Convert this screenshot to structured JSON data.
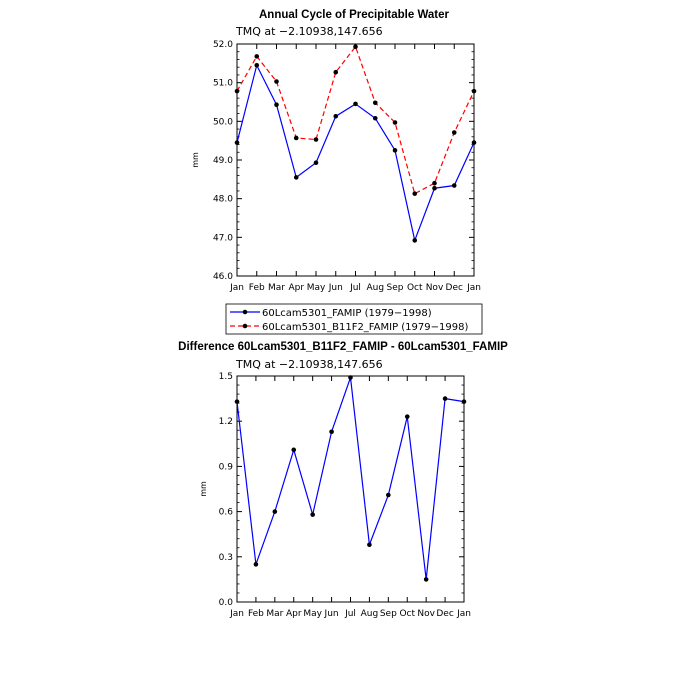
{
  "chart_data": [
    {
      "type": "line",
      "title": "Annual Cycle of Precipitable Water",
      "subtitle": "TMQ  at  −2.10938,147.656",
      "xlabel": "",
      "ylabel": "mm",
      "categories": [
        "Jan",
        "Feb",
        "Mar",
        "Apr",
        "May",
        "Jun",
        "Jul",
        "Aug",
        "Sep",
        "Oct",
        "Nov",
        "Dec",
        "Jan"
      ],
      "ylim": [
        46.0,
        52.0
      ],
      "yticks": [
        "46.0",
        "47.0",
        "48.0",
        "49.0",
        "50.0",
        "51.0",
        "52.0"
      ],
      "legend_position": "bottom",
      "series": [
        {
          "name": "60Lcam5301_FAMIP (1979−1998)",
          "color": "#0000ff",
          "dash": "solid",
          "values": [
            49.45,
            51.45,
            50.43,
            48.55,
            48.93,
            50.13,
            50.45,
            50.08,
            49.25,
            46.92,
            48.27,
            48.34,
            49.45
          ]
        },
        {
          "name": "60Lcam5301_B11F2_FAMIP (1979−1998)",
          "color": "#ff0000",
          "dash": "dashed",
          "values": [
            50.78,
            51.68,
            51.03,
            49.57,
            49.53,
            51.27,
            51.93,
            50.48,
            49.97,
            48.13,
            48.4,
            49.71,
            50.78
          ]
        }
      ]
    },
    {
      "type": "line",
      "title": "Difference 60Lcam5301_B11F2_FAMIP - 60Lcam5301_FAMIP",
      "subtitle": "TMQ  at  −2.10938,147.656",
      "xlabel": "",
      "ylabel": "mm",
      "categories": [
        "Jan",
        "Feb",
        "Mar",
        "Apr",
        "May",
        "Jun",
        "Jul",
        "Aug",
        "Sep",
        "Oct",
        "Nov",
        "Dec",
        "Jan"
      ],
      "ylim": [
        0.0,
        1.5
      ],
      "yticks": [
        "0.0",
        "0.3",
        "0.6",
        "0.9",
        "1.2",
        "1.5"
      ],
      "series": [
        {
          "color": "#0000ff",
          "values": [
            1.33,
            0.25,
            0.6,
            1.01,
            0.58,
            1.13,
            1.49,
            0.38,
            0.71,
            1.23,
            0.15,
            1.35,
            1.33
          ]
        }
      ]
    }
  ]
}
